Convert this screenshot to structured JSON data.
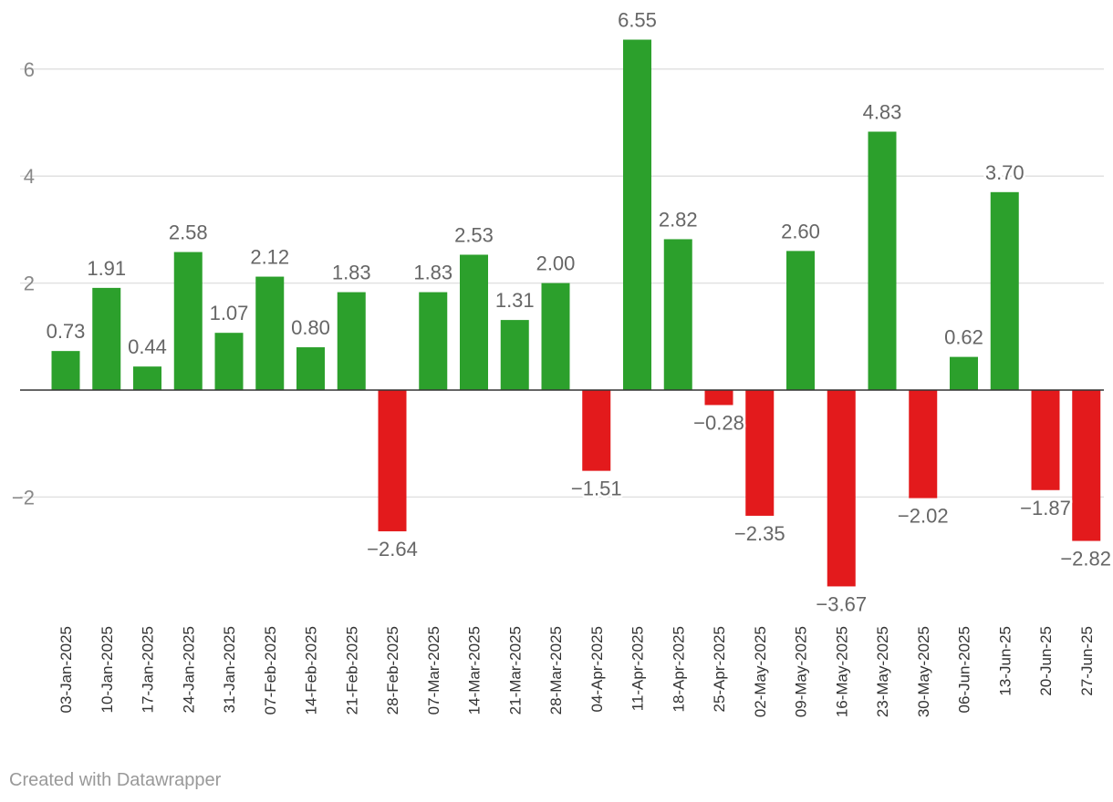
{
  "chart_data": {
    "type": "bar",
    "title": "",
    "xlabel": "",
    "ylabel": "",
    "ylim": [
      -4.2,
      6.8
    ],
    "yticks": [
      -2,
      2,
      4,
      6
    ],
    "ytick_labels": [
      "−2",
      "2",
      "4",
      "6"
    ],
    "grid": true,
    "colors": {
      "positive": "#2ca02c",
      "negative": "#e31a1c"
    },
    "categories": [
      "03-Jan-2025",
      "10-Jan-2025",
      "17-Jan-2025",
      "24-Jan-2025",
      "31-Jan-2025",
      "07-Feb-2025",
      "14-Feb-2025",
      "21-Feb-2025",
      "28-Feb-2025",
      "07-Mar-2025",
      "14-Mar-2025",
      "21-Mar-2025",
      "28-Mar-2025",
      "04-Apr-2025",
      "11-Apr-2025",
      "18-Apr-2025",
      "25-Apr-2025",
      "02-May-2025",
      "09-May-2025",
      "16-May-2025",
      "23-May-2025",
      "30-May-2025",
      "06-Jun-2025",
      "13-Jun-25",
      "20-Jun-25",
      "27-Jun-25"
    ],
    "values": [
      0.73,
      1.91,
      0.44,
      2.58,
      1.07,
      2.12,
      0.8,
      1.83,
      -2.64,
      1.83,
      2.53,
      1.31,
      2.0,
      -1.51,
      6.55,
      2.82,
      -0.28,
      -2.35,
      2.6,
      -3.67,
      4.83,
      -2.02,
      0.62,
      3.7,
      -1.87,
      -2.82
    ],
    "value_labels": [
      "0.73",
      "1.91",
      "0.44",
      "2.58",
      "1.07",
      "2.12",
      "0.80",
      "1.83",
      "−2.64",
      "1.83",
      "2.53",
      "1.31",
      "2.00",
      "−1.51",
      "6.55",
      "2.82",
      "−0.28",
      "−2.35",
      "2.60",
      "−3.67",
      "4.83",
      "−2.02",
      "0.62",
      "3.70",
      "−1.87",
      "−2.82"
    ]
  },
  "footer": {
    "credit": "Created with Datawrapper"
  }
}
